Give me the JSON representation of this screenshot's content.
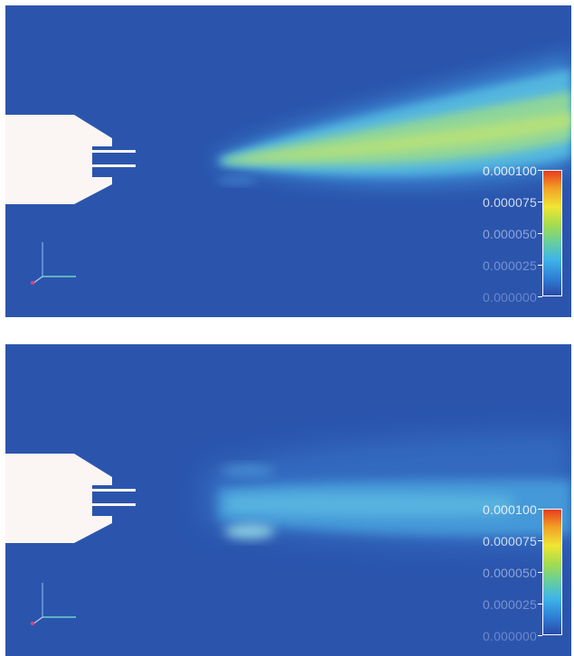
{
  "colors": {
    "background": "#2b55ad",
    "nozzle": "#fbf5f3",
    "plume_low": "#4aa0e0",
    "plume_mid": "#6fc7b4",
    "plume_core": "#b6e37a"
  },
  "colorbar": {
    "colors": [
      "#2a4aa8",
      "#2f7fd6",
      "#3fb5e8",
      "#68cf9a",
      "#a6dc4c",
      "#f0e634",
      "#f2a126",
      "#e83b1e"
    ]
  },
  "panels": [
    {
      "legend": {
        "ticks": [
          "0.000100",
          "0.000075",
          "0.000050",
          "0.000025",
          "0.000000"
        ]
      }
    },
    {
      "legend": {
        "ticks": [
          "0.000100",
          "0.000075",
          "0.000050",
          "0.000025",
          "0.000000"
        ]
      }
    }
  ]
}
